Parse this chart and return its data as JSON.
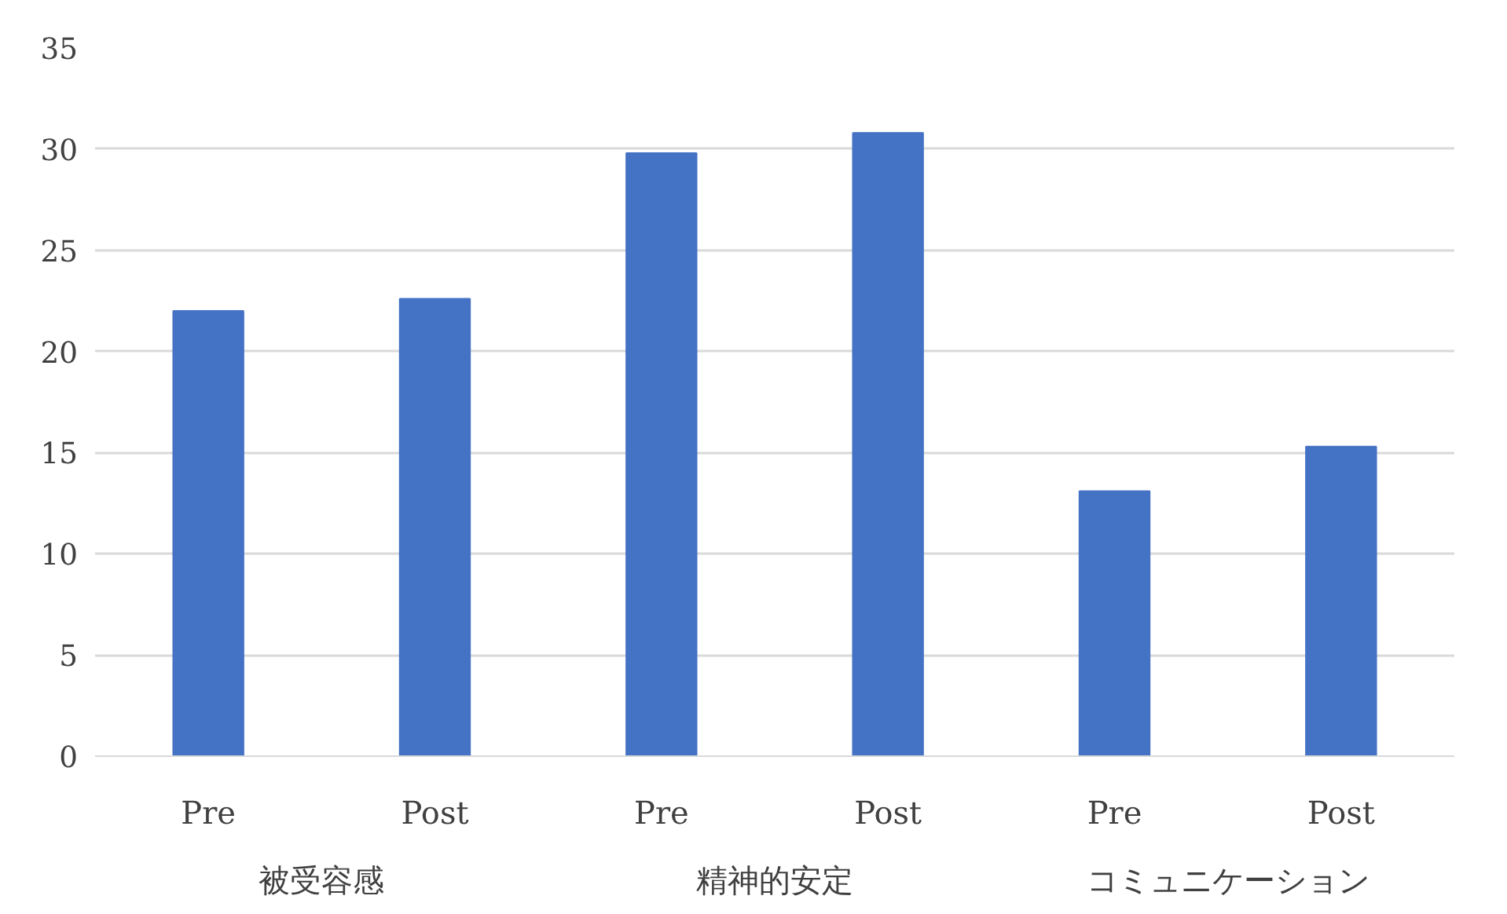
{
  "chart_data": {
    "type": "bar",
    "categories": [
      "Pre",
      "Post",
      "Pre",
      "Post",
      "Pre",
      "Post"
    ],
    "values": [
      22.0,
      22.6,
      29.8,
      30.8,
      13.1,
      15.3
    ],
    "color": "#4472c4",
    "annotations": [
      "被受容感",
      "精神的安定",
      "コミュニケーション"
    ],
    "ylim": [
      0,
      35
    ],
    "yticks": [
      0,
      5,
      10,
      15,
      20,
      25,
      30,
      35
    ],
    "grid": "y"
  }
}
